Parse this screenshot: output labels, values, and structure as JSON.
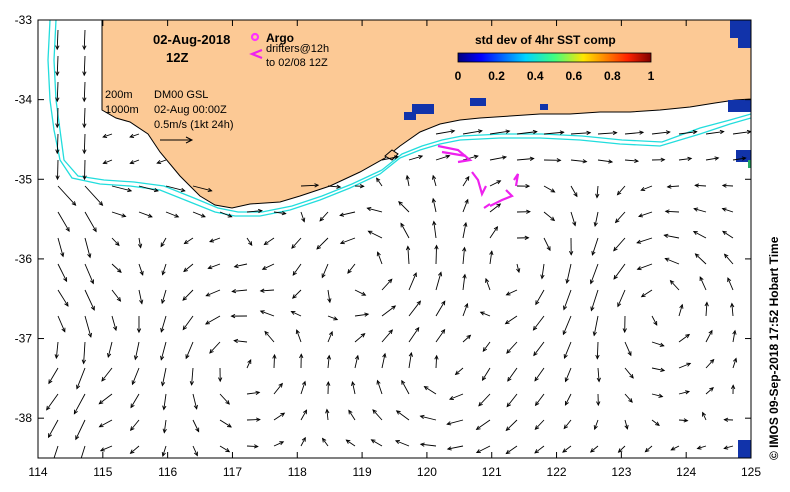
{
  "header": {
    "date": "02-Aug-2018",
    "time": "12Z"
  },
  "legend": {
    "argo_label": "Argo",
    "drifters_line1": "drifters@12h",
    "drifters_line2": "to 02/08 12Z",
    "argo_color": "#ff33ff",
    "drifter_color": "#ee22ee"
  },
  "notes": {
    "isobath_200": "200m",
    "isobath_1000": "1000m",
    "model": "DM00 GSL",
    "model_time": "02-Aug 00:00Z",
    "scale_label": "0.5m/s (1kt 24h)"
  },
  "colorbar": {
    "title": "std dev of 4hr SST comp",
    "ticks": [
      "0",
      "0.2",
      "0.4",
      "0.6",
      "0.8",
      "1"
    ]
  },
  "credit": "© IMOS 09-Sep-2018 17:52 Hobart Time",
  "colors": {
    "land": "#fcc995",
    "isobath": "#22dddd",
    "sst_patch": "#1133aa"
  },
  "axes": {
    "x_ticks": [
      "114",
      "115",
      "116",
      "117",
      "118",
      "119",
      "120",
      "121",
      "122",
      "123",
      "124",
      "125"
    ],
    "y_ticks": [
      "-33",
      "-34",
      "-35",
      "-36",
      "-37",
      "-38"
    ],
    "lon_range": [
      114,
      125
    ],
    "lat_range": [
      -38.5,
      -33
    ]
  }
}
